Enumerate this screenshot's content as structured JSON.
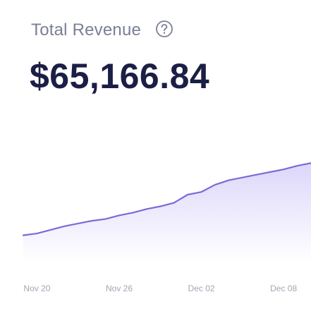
{
  "card": {
    "title": "Total Revenue",
    "total_value": "$65,166.84",
    "help_icon": "question-circle-icon"
  },
  "colors": {
    "title": "#7b7f95",
    "value": "#1b1f45",
    "line": "#7a6bd6",
    "fill_top": "#ddd6fa",
    "fill_bottom": "#ffffff",
    "tick": "#a3a6b4"
  },
  "chart_data": {
    "type": "area",
    "title": "",
    "xlabel": "",
    "ylabel": "",
    "x_ticks": [
      "Nov 20",
      "Nov 26",
      "Dec 02",
      "Dec 08"
    ],
    "x": [
      "Nov 19",
      "Nov 20",
      "Nov 21",
      "Nov 22",
      "Nov 23",
      "Nov 24",
      "Nov 25",
      "Nov 26",
      "Nov 27",
      "Nov 28",
      "Nov 29",
      "Nov 30",
      "Dec 01",
      "Dec 02",
      "Dec 03",
      "Dec 04",
      "Dec 05",
      "Dec 06",
      "Dec 07",
      "Dec 08",
      "Dec 09",
      "Dec 10"
    ],
    "series": [
      {
        "values": [
          30,
          32,
          36,
          40,
          43,
          46,
          48,
          52,
          55,
          59,
          62,
          66,
          75,
          78,
          86,
          91,
          94,
          97,
          100,
          103,
          107,
          110
        ]
      }
    ],
    "ylim": [
      0,
      150
    ],
    "grid": false,
    "legend": "none"
  }
}
